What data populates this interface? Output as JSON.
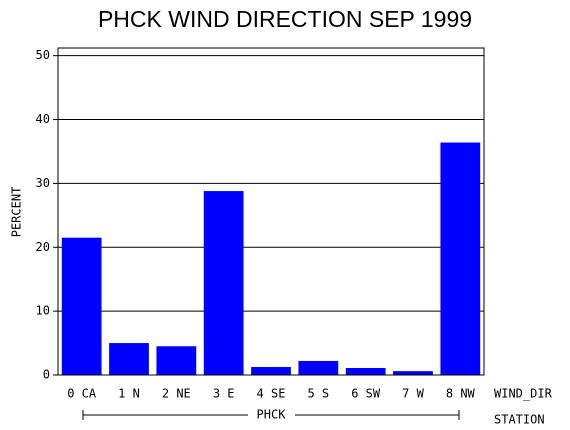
{
  "chart_data": {
    "type": "bar",
    "title": "PHCK WIND DIRECTION SEP 1999",
    "y_label": "PERCENT",
    "x_label": "WIND_DIR",
    "group": "PHCK",
    "group_label": "STATION",
    "categories": [
      "0 CA",
      "1 N",
      "2 NE",
      "3 E",
      "4 SE",
      "5 S",
      "6 SW",
      "7 W",
      "8 NW"
    ],
    "values": [
      21.5,
      5.0,
      4.5,
      28.8,
      1.25,
      2.2,
      1.1,
      0.6,
      36.4
    ],
    "color": "#0000ff",
    "ylim": [
      0,
      51.2
    ],
    "yticks": [
      0,
      10,
      20,
      30,
      40,
      50
    ],
    "grid": true
  }
}
